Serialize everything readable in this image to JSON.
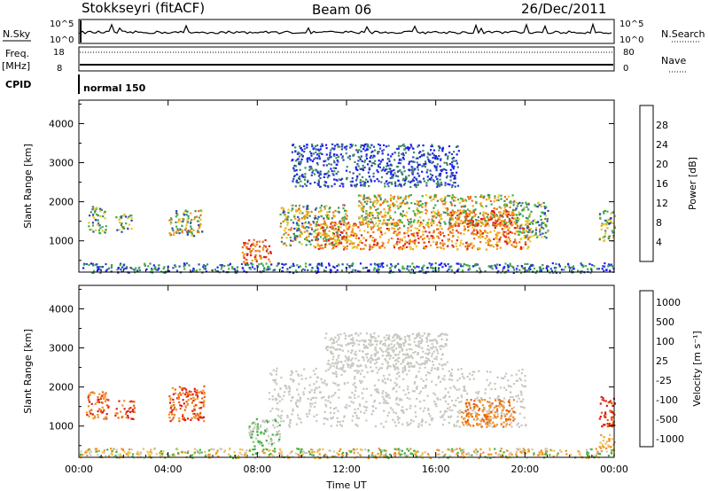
{
  "header": {
    "radar": "Stokkseyri (fitACF)",
    "beam": "Beam 06",
    "date": "26/Dec/2011"
  },
  "strip_labels": {
    "nsky": "N.Sky",
    "nsearch": "N.Search",
    "freq": "Freq.",
    "freq_unit": "[MHz]",
    "nave": "Nave",
    "cpid": "CPID",
    "cpid_value": "normal 150",
    "nsky_top": "10^5",
    "nsky_bottom": "10^0",
    "freq_top": "18",
    "freq_bottom": "8",
    "nave_top": "80",
    "nave_bottom": "0"
  },
  "chart_data": [
    {
      "type": "heatmap",
      "panel": "power",
      "ylabel": "Slant Range [km]",
      "ylim": [
        200,
        4600
      ],
      "yticks": [
        1000,
        2000,
        3000,
        4000
      ],
      "xlim_hours": [
        0,
        24
      ],
      "xticks": [
        "00:00",
        "04:00",
        "08:00",
        "12:00",
        "16:00",
        "20:00",
        "00:00"
      ],
      "colorbar": {
        "label": "Power [dB]",
        "ticks": [
          "4",
          "8",
          "12",
          "16",
          "20",
          "24",
          "28"
        ],
        "colors": [
          "#1a1aff",
          "#2a46b8",
          "#3f8a63",
          "#3fb23f",
          "#e8c82a",
          "#f0a018",
          "#e8701a",
          "#e02020"
        ]
      },
      "regions": [
        {
          "t0": 0.4,
          "t1": 1.2,
          "r0": 1200,
          "r1": 1900,
          "level": [
            1,
            4
          ]
        },
        {
          "t0": 1.6,
          "t1": 2.4,
          "r0": 1250,
          "r1": 1700,
          "level": [
            1,
            4
          ]
        },
        {
          "t0": 4.0,
          "t1": 5.5,
          "r0": 1150,
          "r1": 1800,
          "level": [
            1,
            6
          ]
        },
        {
          "t0": 7.3,
          "t1": 8.6,
          "r0": 400,
          "r1": 1050,
          "level": [
            5,
            7
          ]
        },
        {
          "t0": 9.0,
          "t1": 12.0,
          "r0": 900,
          "r1": 1950,
          "level": [
            1,
            6
          ]
        },
        {
          "t0": 10.5,
          "t1": 20.2,
          "r0": 800,
          "r1": 1500,
          "level": [
            4,
            7
          ]
        },
        {
          "t0": 12.5,
          "t1": 19.5,
          "r0": 1400,
          "r1": 2200,
          "level": [
            2,
            6
          ]
        },
        {
          "t0": 16.5,
          "t1": 19.5,
          "r0": 1400,
          "r1": 1800,
          "level": [
            5,
            7
          ]
        },
        {
          "t0": 19.5,
          "t1": 21.0,
          "r0": 1100,
          "r1": 2000,
          "level": [
            1,
            4
          ]
        },
        {
          "t0": 23.3,
          "t1": 24.0,
          "r0": 1000,
          "r1": 1800,
          "level": [
            1,
            5
          ]
        },
        {
          "t0": 0.0,
          "t1": 24.0,
          "r0": 200,
          "r1": 450,
          "level": [
            0,
            3
          ]
        },
        {
          "t0": 9.5,
          "t1": 17.0,
          "r0": 2400,
          "r1": 3500,
          "level": [
            0,
            2
          ]
        }
      ]
    },
    {
      "type": "heatmap",
      "panel": "velocity",
      "ylabel": "Slant Range [km]",
      "xlabel": "Time UT",
      "ylim": [
        200,
        4600
      ],
      "yticks": [
        1000,
        2000,
        3000,
        4000
      ],
      "xlim_hours": [
        0,
        24
      ],
      "xticks": [
        "00:00",
        "04:00",
        "08:00",
        "12:00",
        "16:00",
        "20:00",
        "00:00"
      ],
      "colorbar": {
        "label": "Velocity [m s⁻¹]",
        "ticks": [
          "1000",
          "500",
          "100",
          "25",
          "-25",
          "-100",
          "-500",
          "-1000"
        ],
        "colors": [
          "#2a46b8",
          "#3f8a63",
          "#3fb23f",
          "#c8c8c0",
          "#f0c050",
          "#f09020",
          "#e86010",
          "#e01818"
        ]
      },
      "regions": [
        {
          "t0": 0.3,
          "t1": 1.3,
          "r0": 1200,
          "r1": 1900,
          "level": [
            5,
            7
          ]
        },
        {
          "t0": 1.6,
          "t1": 2.5,
          "r0": 1200,
          "r1": 1700,
          "level": [
            5,
            7
          ]
        },
        {
          "t0": 4.0,
          "t1": 5.6,
          "r0": 1150,
          "r1": 2050,
          "level": [
            5,
            7
          ]
        },
        {
          "t0": 8.5,
          "t1": 20.0,
          "r0": 1000,
          "r1": 2500,
          "level": [
            3,
            3
          ]
        },
        {
          "t0": 11.0,
          "t1": 16.5,
          "r0": 2500,
          "r1": 3400,
          "level": [
            3,
            3
          ]
        },
        {
          "t0": 7.6,
          "t1": 9.0,
          "r0": 500,
          "r1": 1200,
          "level": [
            2,
            3
          ]
        },
        {
          "t0": 17.0,
          "t1": 19.5,
          "r0": 1000,
          "r1": 1700,
          "level": [
            5,
            6
          ]
        },
        {
          "t0": 23.3,
          "t1": 24.0,
          "r0": 1000,
          "r1": 1800,
          "level": [
            6,
            7
          ]
        },
        {
          "t0": 0.0,
          "t1": 24.0,
          "r0": 200,
          "r1": 450,
          "level": [
            2,
            5
          ]
        },
        {
          "t0": 23.3,
          "t1": 24.0,
          "r0": 400,
          "r1": 800,
          "level": [
            4,
            5
          ]
        }
      ]
    }
  ]
}
